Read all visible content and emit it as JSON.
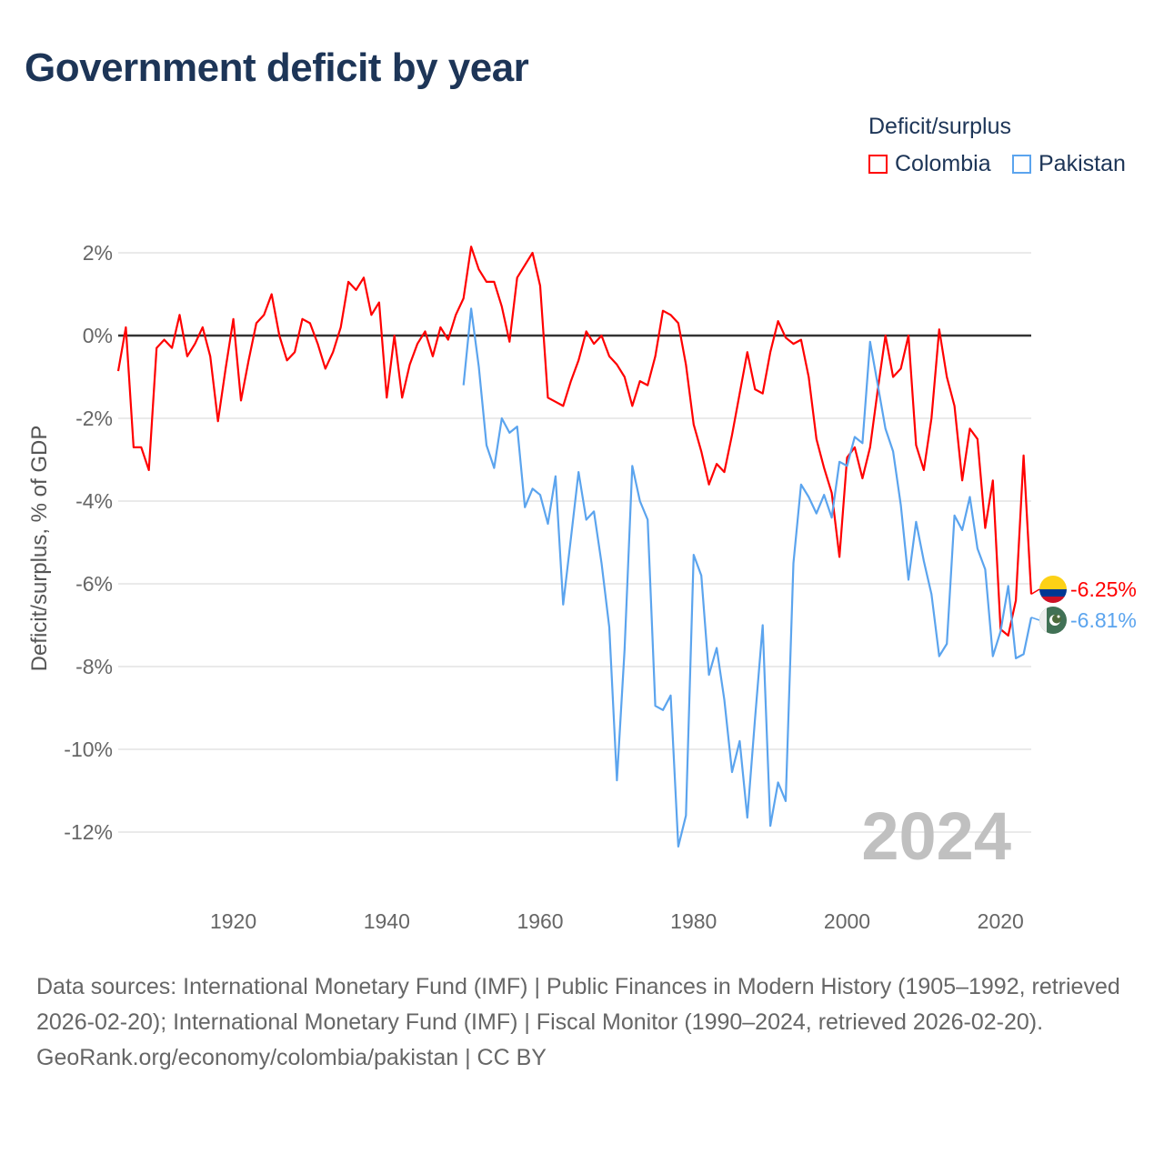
{
  "title": "Government deficit by year",
  "legend": {
    "title": "Deficit/surplus",
    "items": [
      {
        "label": "Colombia",
        "color": "#ff0000"
      },
      {
        "label": "Pakistan",
        "color": "#5ba4ee"
      }
    ]
  },
  "footer": {
    "sources": "Data sources: International Monetary Fund (IMF) | Public Finances in Modern History (1905–1992, retrieved 2026-02-20); International Monetary Fund (IMF) | Fiscal Monitor (1990–2024, retrieved 2026-02-20).",
    "credit": "GeoRank.org/economy/colombia/pakistan | CC BY"
  },
  "chart_data": {
    "type": "line",
    "title": "Government deficit by year",
    "xlabel": "",
    "ylabel": "Deficit/surplus, % of GDP",
    "xlim": [
      1905,
      2024
    ],
    "ylim": [
      -13,
      2.5
    ],
    "yticks": [
      2,
      0,
      -2,
      -4,
      -6,
      -8,
      -10,
      -12
    ],
    "ytick_labels": [
      "2%",
      "0%",
      "-2%",
      "-4%",
      "-6%",
      "-8%",
      "-10%",
      "-12%"
    ],
    "xticks": [
      1920,
      1940,
      1960,
      1980,
      2000,
      2020
    ],
    "xtick_labels": [
      "1920",
      "1940",
      "1960",
      "1980",
      "2000",
      "2020"
    ],
    "year_watermark": "2024",
    "legend_position": "top-right",
    "series": [
      {
        "name": "Colombia",
        "color": "#ff0000",
        "start_year": 1905,
        "end_label": "-6.25%",
        "values": [
          -0.86,
          0.2,
          -2.7,
          -2.7,
          -3.25,
          -0.3,
          -0.1,
          -0.3,
          0.5,
          -0.5,
          -0.2,
          0.2,
          -0.5,
          -2.07,
          -0.8,
          0.4,
          -1.57,
          -0.6,
          0.3,
          0.5,
          1.0,
          0,
          -0.6,
          -0.4,
          0.4,
          0.3,
          -0.2,
          -0.8,
          -0.4,
          0.2,
          1.3,
          1.1,
          1.4,
          0.5,
          0.8,
          -1.5,
          0,
          -1.5,
          -0.7,
          -0.2,
          0.1,
          -0.5,
          0.2,
          -0.1,
          0.5,
          0.9,
          2.15,
          1.6,
          1.3,
          1.3,
          0.7,
          -0.15,
          1.4,
          1.7,
          2.0,
          1.2,
          -1.5,
          -1.6,
          -1.7,
          -1.1,
          -0.6,
          0.1,
          -0.2,
          0,
          -0.5,
          -0.7,
          -1.0,
          -1.7,
          -1.1,
          -1.2,
          -0.5,
          0.6,
          0.5,
          0.3,
          -0.7,
          -2.15,
          -2.8,
          -3.6,
          -3.1,
          -3.3,
          -2.4,
          -1.4,
          -0.4,
          -1.3,
          -1.4,
          -0.4,
          0.35,
          -0.05,
          -0.2,
          -0.1,
          -1.0,
          -2.5,
          -3.2,
          -3.8,
          -5.35,
          -2.95,
          -2.7,
          -3.45,
          -2.7,
          -1.3,
          0,
          -1.0,
          -0.8,
          0,
          -2.65,
          -3.25,
          -2.0,
          0.15,
          -1.0,
          -1.7,
          -3.5,
          -2.25,
          -2.5,
          -4.65,
          -3.5,
          -7.1,
          -7.25,
          -6.4,
          -2.9,
          -6.25
        ]
      },
      {
        "name": "Pakistan",
        "color": "#5ba4ee",
        "start_year": 1950,
        "end_label": "-6.81%",
        "values": [
          -1.2,
          0.65,
          -0.75,
          -2.65,
          -3.2,
          -2.0,
          -2.35,
          -2.2,
          -4.15,
          -3.7,
          -3.85,
          -4.55,
          -3.4,
          -6.5,
          -4.9,
          -3.3,
          -4.45,
          -4.25,
          -5.5,
          -7.05,
          -10.75,
          -7.6,
          -3.15,
          -4.0,
          -4.45,
          -8.95,
          -9.05,
          -8.7,
          -12.35,
          -11.6,
          -5.3,
          -5.8,
          -8.2,
          -7.55,
          -8.8,
          -10.55,
          -9.8,
          -11.65,
          -9.25,
          -7.0,
          -11.85,
          -10.8,
          -11.25,
          -5.5,
          -3.6,
          -3.9,
          -4.3,
          -3.85,
          -4.4,
          -3.05,
          -3.15,
          -2.45,
          -2.6,
          -0.15,
          -1.2,
          -2.25,
          -2.8,
          -4.1,
          -5.9,
          -4.5,
          -5.45,
          -6.25,
          -7.75,
          -7.45,
          -4.35,
          -4.7,
          -3.9,
          -5.15,
          -5.65,
          -7.75,
          -7.15,
          -6.05,
          -7.8,
          -7.7,
          -6.81
        ]
      }
    ]
  }
}
